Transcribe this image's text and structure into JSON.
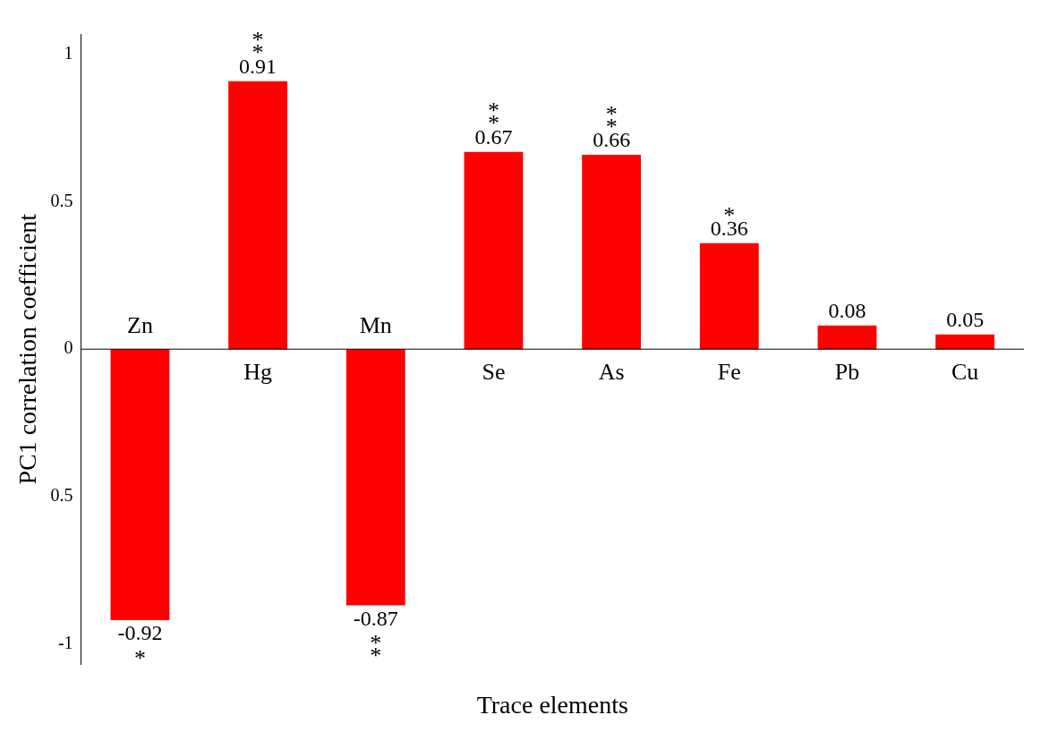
{
  "chart_data": {
    "type": "bar",
    "xlabel": "Trace elements",
    "ylabel": "PC1 correlation coefficient",
    "categories": [
      "Zn",
      "Hg",
      "Mn",
      "Se",
      "As",
      "Fe",
      "Pb",
      "Cu"
    ],
    "values": [
      -0.92,
      0.91,
      -0.87,
      0.67,
      0.66,
      0.36,
      0.08,
      0.05
    ],
    "color": "#ff0000",
    "ylim": [
      -1.07,
      1.07
    ],
    "yticks": [
      -1,
      {
        "value": -0.5,
        "label": "0.5"
      },
      0,
      0.5,
      1
    ],
    "grid": false,
    "legend": false,
    "data_labels": true,
    "annotations": [
      {
        "text": "*",
        "x": "Zn",
        "y": -0.92
      },
      {
        "text": "**",
        "x": "Hg",
        "y": 0.91
      },
      {
        "text": "**",
        "x": "Mn",
        "y": -0.87
      },
      {
        "text": "**",
        "x": "Se",
        "y": 0.67
      },
      {
        "text": "**",
        "x": "As",
        "y": 0.66
      },
      {
        "text": "*",
        "x": "Fe",
        "y": 0.36
      }
    ]
  }
}
